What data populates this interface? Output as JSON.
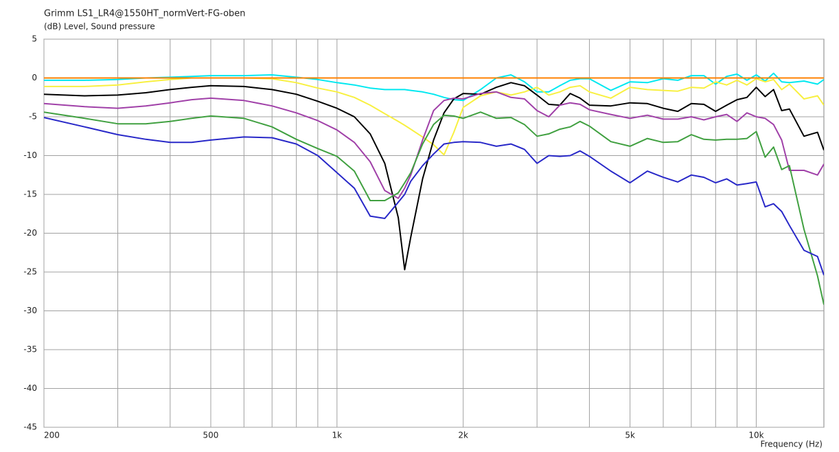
{
  "chart_data": {
    "type": "line",
    "title": "Grimm LS1_LR4@1550HT_normVert-FG-oben",
    "ylabel": "(dB)  Level, Sound pressure",
    "xlabel": "Frequency  (Hz)",
    "log_x": true,
    "grid": true,
    "x": [
      200,
      250,
      300,
      350,
      400,
      450,
      500,
      600,
      700,
      800,
      900,
      1000,
      1100,
      1200,
      1300,
      1400,
      1450,
      1500,
      1600,
      1700,
      1800,
      1900,
      2000,
      2200,
      2400,
      2600,
      2800,
      3000,
      3200,
      3400,
      3600,
      3800,
      4000,
      4500,
      5000,
      5500,
      6000,
      6500,
      7000,
      7500,
      8000,
      8500,
      9000,
      9500,
      10000,
      10500,
      11000,
      11500,
      12000,
      13000,
      14000,
      14500
    ],
    "xlim": [
      200,
      14500
    ],
    "xticks": [
      200,
      500,
      {
        "value": 1000,
        "label": "1k"
      },
      {
        "value": 2000,
        "label": "2k"
      },
      {
        "value": 5000,
        "label": "5k"
      },
      {
        "value": 10000,
        "label": "10k"
      }
    ],
    "xgrid_minor": [
      300,
      400,
      600,
      700,
      800,
      900,
      3000,
      4000,
      6000,
      7000,
      8000,
      9000
    ],
    "ylim": [
      -45,
      5
    ],
    "yticks": [
      5,
      0,
      -5,
      -10,
      -15,
      -20,
      -25,
      -30,
      -35,
      -40,
      -45
    ],
    "series": [
      {
        "color": "#00e8f0",
        "values": [
          -0.3,
          -0.3,
          -0.2,
          0,
          0.1,
          0.2,
          0.3,
          0.3,
          0.4,
          0.1,
          -0.2,
          -0.6,
          -0.9,
          -1.3,
          -1.5,
          -1.5,
          -1.5,
          -1.6,
          -1.8,
          -2.1,
          -2.5,
          -2.8,
          -2.9,
          -1.5,
          0,
          0.4,
          -0.5,
          -1.8,
          -1.8,
          -1.0,
          -0.3,
          -0.1,
          -0.1,
          -1.6,
          -0.5,
          -0.6,
          -0.1,
          -0.3,
          0.3,
          0.3,
          -0.8,
          0.2,
          0.5,
          -0.3,
          0.4,
          -0.4,
          0.6,
          -0.5,
          -0.6,
          -0.4,
          -0.8,
          -0.2
        ]
      },
      {
        "color": "#f8f040",
        "values": [
          -1.1,
          -1.1,
          -0.9,
          -0.5,
          -0.2,
          0,
          0,
          0,
          -0.1,
          -0.6,
          -1.3,
          -1.8,
          -2.5,
          -3.5,
          -4.6,
          -5.6,
          -6.1,
          -6.6,
          -7.6,
          -8.6,
          -9.9,
          -7,
          -3.8,
          -2.3,
          -1.8,
          -2.2,
          -1.8,
          -1.2,
          -2.2,
          -1.8,
          -1.2,
          -1.0,
          -1.8,
          -2.6,
          -1.2,
          -1.5,
          -1.6,
          -1.7,
          -1.2,
          -1.3,
          -0.5,
          -0.9,
          -0.3,
          -0.9,
          -0.1,
          -0.5,
          -0.2,
          -1.5,
          -0.8,
          -2.7,
          -2.3,
          -3.5
        ]
      },
      {
        "color": "#000000",
        "values": [
          -2.1,
          -2.3,
          -2.2,
          -1.9,
          -1.5,
          -1.2,
          -1.0,
          -1.1,
          -1.5,
          -2.1,
          -3.0,
          -3.9,
          -5.0,
          -7.2,
          -11,
          -18,
          -24.7,
          -20.5,
          -13,
          -8,
          -4.5,
          -2.7,
          -2.0,
          -2.1,
          -1.2,
          -0.6,
          -1.0,
          -2.2,
          -3.4,
          -3.5,
          -2.0,
          -2.6,
          -3.5,
          -3.6,
          -3.2,
          -3.3,
          -3.9,
          -4.3,
          -3.3,
          -3.4,
          -4.3,
          -3.5,
          -2.8,
          -2.5,
          -1.2,
          -2.4,
          -1.5,
          -4.2,
          -4.0,
          -7.5,
          -7.0,
          -9.3
        ]
      },
      {
        "color": "#a040a8",
        "values": [
          -3.3,
          -3.7,
          -3.9,
          -3.6,
          -3.2,
          -2.8,
          -2.6,
          -2.9,
          -3.6,
          -4.5,
          -5.5,
          -6.7,
          -8.3,
          -10.8,
          -14.5,
          -15.5,
          -14.2,
          -12.5,
          -8,
          -4.2,
          -2.9,
          -2.6,
          -2.7,
          -2.0,
          -1.8,
          -2.5,
          -2.7,
          -4.2,
          -5.0,
          -3.5,
          -3.2,
          -3.4,
          -4.1,
          -4.7,
          -5.2,
          -4.8,
          -5.3,
          -5.3,
          -5.0,
          -5.4,
          -5.0,
          -4.7,
          -5.6,
          -4.5,
          -5.0,
          -5.2,
          -6.0,
          -8,
          -11.9,
          -11.9,
          -12.5,
          -11.1
        ]
      },
      {
        "color": "#40a040",
        "values": [
          -4.4,
          -5.2,
          -5.9,
          -5.9,
          -5.6,
          -5.2,
          -4.9,
          -5.2,
          -6.3,
          -7.9,
          -9.1,
          -10.1,
          -12,
          -15.8,
          -15.8,
          -14.8,
          -13.5,
          -12.2,
          -8.5,
          -6,
          -4.8,
          -4.9,
          -5.2,
          -4.4,
          -5.2,
          -5.1,
          -6.0,
          -7.5,
          -7.2,
          -6.6,
          -6.3,
          -5.6,
          -6.2,
          -8.2,
          -8.8,
          -7.8,
          -8.3,
          -8.2,
          -7.3,
          -7.9,
          -8.0,
          -7.9,
          -7.9,
          -7.8,
          -6.9,
          -10.2,
          -8.9,
          -11.8,
          -11.3,
          -19.5,
          -25.5,
          -29.2
        ]
      },
      {
        "color": "#2828c8",
        "values": [
          -5.1,
          -6.3,
          -7.3,
          -7.9,
          -8.3,
          -8.3,
          -8.0,
          -7.6,
          -7.7,
          -8.5,
          -10,
          -12.2,
          -14.2,
          -17.8,
          -18.1,
          -16,
          -15,
          -13.3,
          -11.3,
          -9.8,
          -8.5,
          -8.3,
          -8.2,
          -8.3,
          -8.8,
          -8.5,
          -9.2,
          -11,
          -10,
          -10.1,
          -10.0,
          -9.4,
          -10.1,
          -12,
          -13.5,
          -12.0,
          -12.8,
          -13.4,
          -12.5,
          -12.8,
          -13.5,
          -13.0,
          -13.8,
          -13.6,
          -13.4,
          -16.6,
          -16.2,
          -17.2,
          -19,
          -22.2,
          -23.0,
          -25.4
        ]
      },
      {
        "color": "#ff8000",
        "values": [
          0,
          0,
          0,
          0,
          0,
          0,
          0,
          0,
          0,
          0,
          0,
          0,
          0,
          0,
          0,
          0,
          0,
          0,
          0,
          0,
          0,
          0,
          0,
          0,
          0,
          0,
          0,
          0,
          0,
          0,
          0,
          0,
          0,
          0,
          0,
          0,
          0,
          0,
          0,
          0,
          0,
          0,
          0,
          0,
          0,
          0,
          0,
          0,
          0,
          0,
          0,
          0
        ]
      }
    ]
  }
}
